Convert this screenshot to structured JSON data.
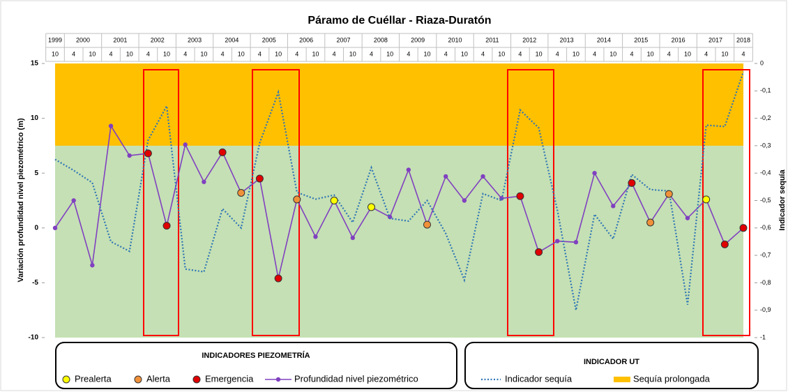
{
  "chart_data": {
    "type": "line",
    "title": "Páramo de Cuéllar - Riaza-Duratón",
    "y_label": "Variación profundidad nivel piezométrico (m)",
    "y2_label": "Indicador sequía",
    "years": [
      "1999",
      "2000",
      "2001",
      "2002",
      "2003",
      "2004",
      "2005",
      "2006",
      "2007",
      "2008",
      "2009",
      "2010",
      "2011",
      "2012",
      "2013",
      "2014",
      "2015",
      "2016",
      "2017",
      "2018"
    ],
    "categories": [
      "10",
      "4",
      "10",
      "4",
      "10",
      "4",
      "10",
      "4",
      "10",
      "4",
      "10",
      "4",
      "10",
      "4",
      "10",
      "4",
      "10",
      "4",
      "10",
      "4",
      "10",
      "4",
      "10",
      "4",
      "10",
      "4",
      "10",
      "4",
      "10",
      "4",
      "10",
      "4",
      "10",
      "4",
      "10",
      "4",
      "10",
      "4"
    ],
    "ylim": [
      -10,
      15
    ],
    "yticks": [
      15,
      10,
      5,
      0,
      -5,
      -10
    ],
    "y2lim": [
      -1,
      0
    ],
    "y2ticks": [
      0,
      {
        "value": -0.1,
        "label": "-0,1"
      },
      {
        "value": -0.2,
        "label": "-0,2"
      },
      {
        "value": -0.3,
        "label": "-0,3"
      },
      {
        "value": -0.4,
        "label": "-0,4"
      },
      {
        "value": -0.5,
        "label": "-0,5"
      },
      {
        "value": -0.6,
        "label": "-0,6"
      },
      {
        "value": -0.7,
        "label": "-0,7"
      },
      {
        "value": -0.8,
        "label": "-0,8"
      },
      {
        "value": -0.9,
        "label": "-0,9"
      },
      -1
    ],
    "legend_titles": [
      "INDICADORES PIEZOMETRÍA",
      "INDICADOR UT"
    ],
    "series": [
      {
        "name": "Prealerta",
        "style": "marker",
        "color": "#ffff00",
        "values": [
          null,
          null,
          null,
          null,
          null,
          null,
          null,
          null,
          null,
          null,
          null,
          null,
          null,
          null,
          null,
          2.5,
          null,
          1.9,
          null,
          null,
          null,
          null,
          null,
          null,
          null,
          null,
          null,
          null,
          null,
          null,
          null,
          null,
          null,
          null,
          null,
          2.6,
          null,
          null
        ]
      },
      {
        "name": "Alerta",
        "style": "marker",
        "color": "#f0913a",
        "values": [
          null,
          null,
          null,
          null,
          null,
          null,
          null,
          null,
          null,
          null,
          3.2,
          null,
          null,
          2.6,
          null,
          null,
          null,
          null,
          null,
          null,
          0.3,
          null,
          null,
          null,
          null,
          null,
          null,
          null,
          null,
          null,
          null,
          null,
          0.5,
          3.1,
          null,
          null,
          null,
          null
        ]
      },
      {
        "name": "Emergencia",
        "style": "marker",
        "color": "#e00000",
        "values": [
          null,
          null,
          null,
          null,
          null,
          6.8,
          0.2,
          null,
          null,
          6.9,
          null,
          4.5,
          -4.6,
          null,
          null,
          null,
          null,
          null,
          null,
          null,
          null,
          null,
          null,
          null,
          null,
          2.9,
          -2.2,
          null,
          null,
          null,
          null,
          4.1,
          null,
          null,
          null,
          null,
          -1.5,
          0.0
        ]
      },
      {
        "name": "Profundidad nivel piezométrico",
        "style": "line",
        "color": "#8040c0",
        "values": [
          0,
          2.5,
          -3.4,
          9.3,
          6.6,
          6.8,
          0.2,
          7.6,
          4.2,
          6.9,
          3.2,
          4.5,
          -4.6,
          2.6,
          -0.8,
          2.5,
          -0.9,
          1.9,
          1.0,
          5.3,
          0.3,
          4.7,
          2.5,
          4.7,
          2.7,
          2.9,
          -2.2,
          -1.2,
          -1.3,
          5.0,
          2.0,
          4.1,
          0.5,
          3.1,
          0.9,
          2.6,
          -1.5,
          0.0
        ]
      },
      {
        "name": "Indicador sequía",
        "style": "dotted",
        "axis": "y2",
        "color": "#2e75b6",
        "values": [
          -0.35,
          -0.39,
          -0.435,
          -0.65,
          -0.685,
          -0.28,
          -0.155,
          -0.75,
          -0.76,
          -0.53,
          -0.6,
          -0.29,
          -0.105,
          -0.47,
          -0.495,
          -0.48,
          -0.58,
          -0.38,
          -0.565,
          -0.575,
          -0.5,
          -0.62,
          -0.79,
          -0.475,
          -0.5,
          -0.17,
          -0.235,
          -0.535,
          -0.9,
          -0.55,
          -0.64,
          -0.405,
          -0.46,
          -0.465,
          -0.88,
          -0.225,
          -0.23,
          -0.03
        ]
      },
      {
        "name": "Sequía prolongada",
        "style": "band",
        "axis": "y2",
        "color": "#ffc000",
        "band": [
          -0.3,
          0
        ]
      }
    ]
  }
}
